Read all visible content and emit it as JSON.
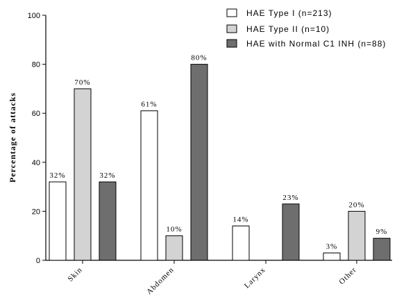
{
  "chart_data": {
    "type": "bar",
    "title": "",
    "xlabel": "",
    "ylabel": "Percentage of attacks",
    "ylim": [
      0,
      100
    ],
    "yticks": [
      0,
      20,
      40,
      60,
      80,
      100
    ],
    "categories": [
      "Skin",
      "Abdomen",
      "Larynx",
      "Other"
    ],
    "series": [
      {
        "name": "HAE Type I (n=213)",
        "color": "#ffffff",
        "values": [
          32,
          61,
          14,
          3
        ],
        "labels": [
          "32%",
          "61%",
          "14%",
          "3%"
        ]
      },
      {
        "name": "HAE Type II (n=10)",
        "color": "#d3d3d3",
        "values": [
          70,
          10,
          0,
          20
        ],
        "labels": [
          "70%",
          "10%",
          "",
          "20%"
        ]
      },
      {
        "name": "HAE with Normal C1 INH (n=88)",
        "color": "#6e6e6e",
        "values": [
          32,
          80,
          23,
          9
        ],
        "labels": [
          "32%",
          "80%",
          "23%",
          "9%"
        ]
      }
    ],
    "grid": false,
    "legend_position": "top-right"
  }
}
